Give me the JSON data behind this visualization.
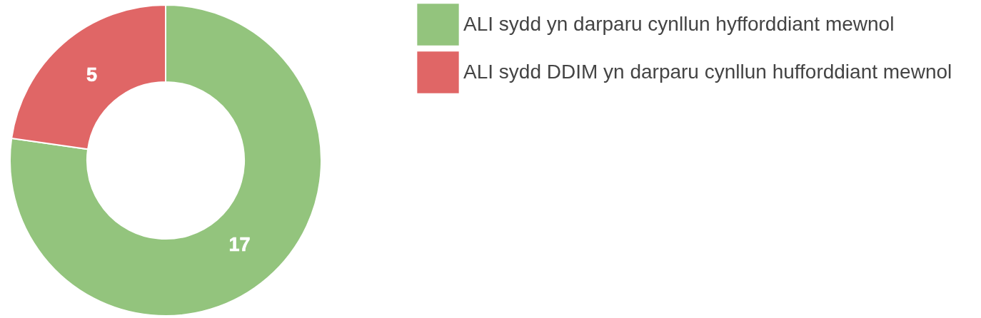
{
  "chart_data": {
    "type": "donut",
    "categories": [
      "ALI sydd yn darparu cynllun hyfforddiant mewnol",
      "ALI sydd DDIM yn darparu cynllun hufforddiant mewnol"
    ],
    "values": [
      17,
      5
    ],
    "colors": [
      "#93c47d",
      "#e06666"
    ],
    "data_labels": true,
    "legend": "right"
  }
}
